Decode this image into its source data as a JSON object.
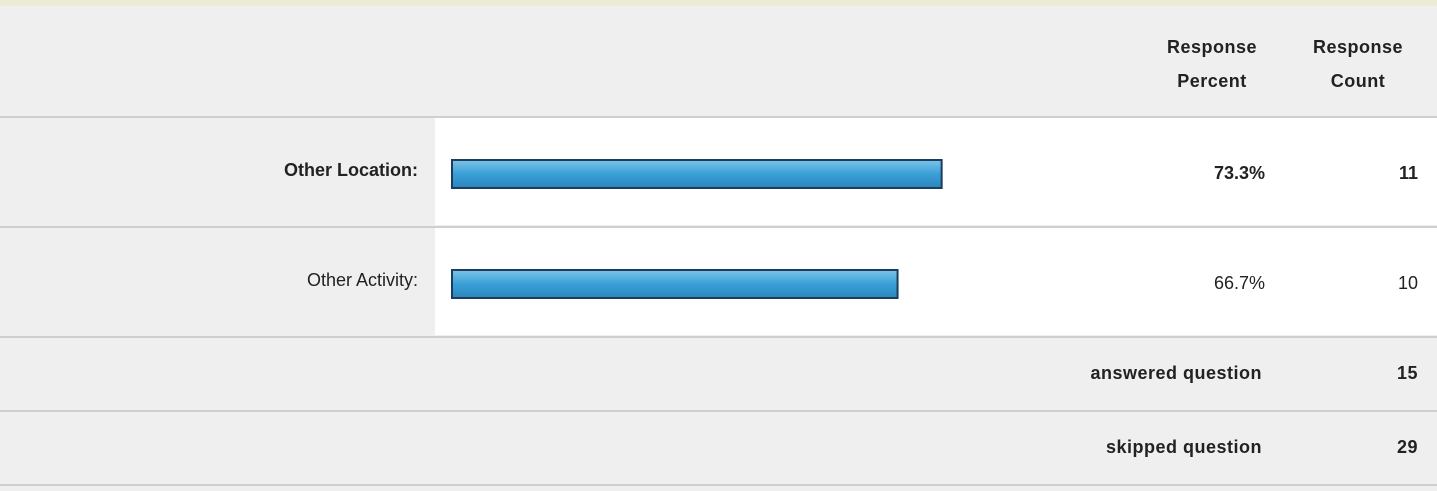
{
  "table": {
    "header": {
      "percent": "Response Percent",
      "count": "Response Count"
    },
    "xlim": [
      0,
      100
    ],
    "rows": [
      {
        "label": "Other Location:",
        "percent": 73.3,
        "percent_label": "73.3%",
        "count": 11,
        "bold": true
      },
      {
        "label": "Other Activity:",
        "percent": 66.7,
        "percent_label": "66.7%",
        "count": 10,
        "bold": false
      }
    ],
    "summary": [
      {
        "label": "answered question",
        "count": 15
      },
      {
        "label": "skipped question",
        "count": 29
      }
    ]
  }
}
